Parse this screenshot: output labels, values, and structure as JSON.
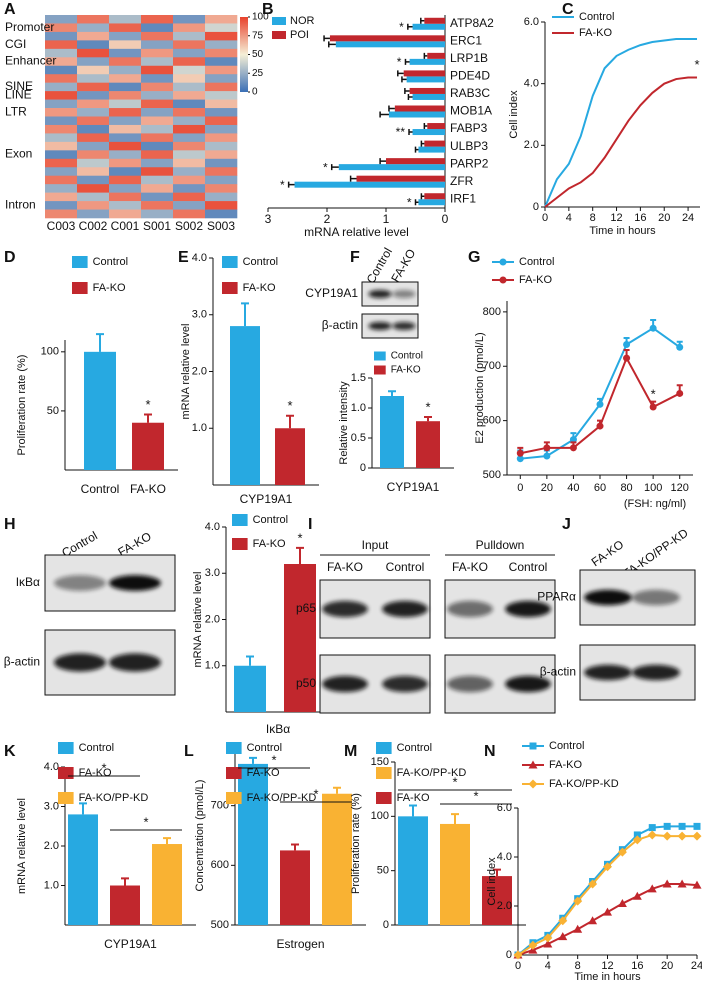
{
  "chart_data": [
    {
      "type": "heatmap",
      "letter": "A",
      "columns": [
        "C003",
        "C002",
        "C001",
        "S001",
        "S002",
        "S003"
      ],
      "rows": [
        null,
        "Promoter",
        null,
        "CGI",
        null,
        "Enhancer",
        null,
        null,
        "SINE",
        "LINE",
        null,
        "LTR",
        null,
        null,
        null,
        null,
        "Exon",
        null,
        null,
        null,
        null,
        null,
        "Intron",
        null
      ],
      "values": [
        [
          20,
          85,
          30,
          90,
          15,
          70
        ],
        [
          80,
          25,
          90,
          10,
          75,
          40
        ],
        [
          15,
          70,
          20,
          85,
          30,
          95
        ],
        [
          90,
          10,
          60,
          20,
          85,
          25
        ],
        [
          30,
          95,
          15,
          75,
          20,
          80
        ],
        [
          70,
          20,
          85,
          30,
          90,
          10
        ],
        [
          10,
          60,
          25,
          95,
          40,
          75
        ],
        [
          85,
          30,
          70,
          15,
          60,
          20
        ],
        [
          25,
          90,
          10,
          80,
          30,
          85
        ],
        [
          95,
          15,
          80,
          25,
          70,
          35
        ],
        [
          20,
          75,
          35,
          90,
          10,
          65
        ],
        [
          75,
          25,
          90,
          20,
          85,
          15
        ],
        [
          15,
          85,
          20,
          70,
          25,
          90
        ],
        [
          80,
          10,
          65,
          30,
          95,
          20
        ],
        [
          30,
          90,
          15,
          85,
          20,
          75
        ],
        [
          65,
          20,
          95,
          10,
          80,
          30
        ],
        [
          10,
          80,
          25,
          90,
          35,
          70
        ],
        [
          90,
          35,
          75,
          20,
          65,
          15
        ],
        [
          20,
          65,
          10,
          95,
          25,
          85
        ],
        [
          85,
          15,
          90,
          30,
          75,
          20
        ],
        [
          25,
          95,
          20,
          70,
          15,
          80
        ],
        [
          70,
          30,
          85,
          15,
          90,
          25
        ],
        [
          15,
          75,
          30,
          85,
          20,
          95
        ],
        [
          80,
          20,
          70,
          25,
          85,
          10
        ]
      ],
      "zlim": [
        0,
        100
      ],
      "zticks": [
        0,
        25,
        50,
        75,
        100
      ],
      "colormap": [
        "#3b6fb6",
        "#f5efd6",
        "#e8412c"
      ]
    },
    {
      "type": "hbar",
      "letter": "B",
      "categories": [
        "ATP8A2",
        "ERC1",
        "LRP1B",
        "PDE4D",
        "RAB3C",
        "MOB1A",
        "FABP3",
        "ULBP3",
        "PARP2",
        "ZFR",
        "IRF1"
      ],
      "series": [
        {
          "name": "NOR",
          "color": "#27a9e1",
          "values": [
            0.55,
            1.85,
            0.6,
            0.65,
            0.55,
            0.95,
            0.55,
            0.45,
            1.8,
            2.55,
            0.45
          ],
          "errors": [
            0.08,
            0.12,
            0.07,
            0.08,
            0.07,
            0.15,
            0.06,
            0.05,
            0.12,
            0.1,
            0.05
          ]
        },
        {
          "name": "POI",
          "color": "#c1272d",
          "values": [
            0.35,
            1.95,
            0.3,
            0.7,
            0.6,
            0.85,
            0.3,
            0.35,
            1.0,
            1.5,
            0.35
          ],
          "errors": [
            0.06,
            0.1,
            0.05,
            0.1,
            0.08,
            0.1,
            0.05,
            0.05,
            0.1,
            0.1,
            0.05
          ]
        }
      ],
      "markers": [
        "*",
        null,
        "*",
        null,
        null,
        null,
        "**",
        null,
        "*",
        "*",
        "*"
      ],
      "xlim": [
        3,
        0
      ],
      "xticks": [
        3,
        2,
        1,
        0
      ],
      "xlabel": "mRNA relative level"
    },
    {
      "type": "line",
      "letter": "C",
      "x": [
        0,
        2,
        4,
        6,
        8,
        10,
        12,
        14,
        16,
        18,
        20,
        22,
        24,
        25.5
      ],
      "series": [
        {
          "name": "Control",
          "color": "#27a9e1",
          "values": [
            0,
            0.9,
            1.4,
            2.3,
            3.6,
            4.5,
            4.9,
            5.1,
            5.25,
            5.35,
            5.4,
            5.45,
            5.45,
            5.45
          ]
        },
        {
          "name": "FA-KO",
          "color": "#c1272d",
          "values": [
            0,
            0.3,
            0.6,
            0.8,
            1.1,
            1.6,
            2.2,
            2.8,
            3.3,
            3.7,
            4.0,
            4.15,
            4.2,
            4.2
          ],
          "point_labels": [
            null,
            null,
            null,
            null,
            null,
            null,
            null,
            null,
            null,
            null,
            null,
            null,
            null,
            "*"
          ]
        }
      ],
      "xlim": [
        0,
        26
      ],
      "xticks": [
        0,
        4,
        8,
        12,
        16,
        20,
        24
      ],
      "ylim": [
        0,
        6
      ],
      "yticks": [
        0,
        {
          "value": 2,
          "label": "2.0"
        },
        {
          "value": 4,
          "label": "4.0"
        },
        {
          "value": 6,
          "label": "6.0"
        }
      ],
      "xlabel": "Time in hours",
      "ylabel": "Cell index"
    },
    {
      "type": "bar",
      "letter": "D",
      "categories": [
        "Control",
        "FA-KO"
      ],
      "category_labels": true,
      "colors": [
        "#27a9e1",
        "#c1272d"
      ],
      "values": [
        100,
        40
      ],
      "errors": [
        15,
        7
      ],
      "markers": [
        null,
        "*"
      ],
      "ylim": [
        0,
        110
      ],
      "yticks": [
        50,
        100
      ],
      "ylabel": "Proliferation rate (%)"
    },
    {
      "type": "bar",
      "letter": "E",
      "categories": [
        "Control",
        "FA-KO"
      ],
      "colors": [
        "#27a9e1",
        "#c1272d"
      ],
      "values": [
        2.8,
        1.0
      ],
      "errors": [
        0.4,
        0.22
      ],
      "markers": [
        null,
        "*"
      ],
      "ylim": [
        0,
        4
      ],
      "yticks": [
        {
          "value": 1,
          "label": "1.0"
        },
        {
          "value": 2,
          "label": "2.0"
        },
        {
          "value": 3,
          "label": "3.0"
        },
        {
          "value": 4,
          "label": "4.0"
        }
      ],
      "ylabel": "mRNA relative level",
      "xlabel": "CYP19A1"
    },
    {
      "type": "bar",
      "letter": "F",
      "categories": [
        "Control",
        "FA-KO"
      ],
      "colors": [
        "#27a9e1",
        "#c1272d"
      ],
      "values": [
        1.2,
        0.78
      ],
      "errors": [
        0.08,
        0.07
      ],
      "markers": [
        null,
        "*"
      ],
      "ylim": [
        0,
        1.5
      ],
      "yticks": [
        0,
        0.5,
        {
          "value": 1,
          "label": "1.0"
        },
        1.5
      ],
      "ylabel": "Relative intensity",
      "xlabel": "CYP19A1",
      "blot": {
        "columns": [
          "Control",
          "FA-KO"
        ],
        "rows": [
          "CYP19A1",
          "β-actin"
        ]
      }
    },
    {
      "type": "line",
      "letter": "G",
      "x": [
        0,
        20,
        40,
        60,
        80,
        100,
        120
      ],
      "marker": "circle",
      "series": [
        {
          "name": "Control",
          "color": "#27a9e1",
          "values": [
            530,
            535,
            565,
            630,
            740,
            770,
            735
          ],
          "errors": [
            15,
            10,
            12,
            10,
            12,
            15,
            10
          ]
        },
        {
          "name": "FA-KO",
          "color": "#c1272d",
          "values": [
            540,
            550,
            550,
            590,
            715,
            625,
            650
          ],
          "errors": [
            10,
            10,
            10,
            10,
            15,
            10,
            15
          ],
          "point_labels": [
            null,
            null,
            null,
            null,
            null,
            "*",
            null
          ]
        }
      ],
      "xlim": [
        -10,
        130
      ],
      "xticks": [
        0,
        20,
        40,
        60,
        80,
        100,
        120
      ],
      "ylim": [
        500,
        820
      ],
      "yticks": [
        500,
        600,
        700,
        800
      ],
      "ylabel": "E2 production (pmol/L)",
      "note": "(FSH: ng/ml)"
    },
    {
      "type": "bar",
      "letter": "H",
      "categories": [
        "Control",
        "FA-KO"
      ],
      "colors": [
        "#27a9e1",
        "#c1272d"
      ],
      "values": [
        1.0,
        3.2
      ],
      "errors": [
        0.2,
        0.35
      ],
      "markers": [
        null,
        "*"
      ],
      "ylim": [
        0,
        4
      ],
      "yticks": [
        {
          "value": 1,
          "label": "1.0"
        },
        {
          "value": 2,
          "label": "2.0"
        },
        {
          "value": 3,
          "label": "3.0"
        },
        {
          "value": 4,
          "label": "4.0"
        }
      ],
      "ylabel": "mRNA relative level",
      "xlabel": "IκBα",
      "blot": {
        "columns": [
          "Control",
          "FA-KO"
        ],
        "rows": [
          "IκBα",
          "β-actin"
        ]
      }
    },
    {
      "type": "blot",
      "letter": "I",
      "groups": [
        "Input",
        "Pulldown"
      ],
      "columns": [
        "FA-KO",
        "Control",
        "FA-KO",
        "Control"
      ],
      "rows": [
        "p65",
        "p50"
      ]
    },
    {
      "type": "blot",
      "letter": "J",
      "columns": [
        "FA-KO",
        "FA-KO/PP-KD"
      ],
      "rows": [
        "PPARα",
        "β-actin"
      ]
    },
    {
      "type": "bar",
      "letter": "K",
      "categories": [
        "Control",
        "FA-KO",
        "FA-KO/PP-KD"
      ],
      "colors": [
        "#27a9e1",
        "#c1272d",
        "#f9b233"
      ],
      "values": [
        2.8,
        1.0,
        2.05
      ],
      "errors": [
        0.28,
        0.18,
        0.15
      ],
      "ylim": [
        0,
        4
      ],
      "yticks": [
        {
          "value": 1,
          "label": "1.0"
        },
        {
          "value": 2,
          "label": "2.0"
        },
        {
          "value": 3,
          "label": "3.0"
        },
        {
          "value": 4,
          "label": "4.0"
        }
      ],
      "ylabel": "mRNA relative level",
      "xlabel": "CYP19A1",
      "comparisons": [
        {
          "bars": [
            0,
            1
          ],
          "label": "*"
        },
        {
          "bars": [
            1,
            2
          ],
          "label": "*"
        }
      ]
    },
    {
      "type": "bar",
      "letter": "L",
      "categories": [
        "Control",
        "FA-KO",
        "FA-KO/PP-KD"
      ],
      "colors": [
        "#27a9e1",
        "#c1272d",
        "#f9b233"
      ],
      "values": [
        770,
        625,
        720
      ],
      "errors": [
        10,
        10,
        10
      ],
      "ylim": [
        500,
        800
      ],
      "yticks": [
        500,
        600,
        700
      ],
      "ylabel": "Concentration (pmol/L)",
      "xlabel": "Estrogen",
      "comparisons": [
        {
          "bars": [
            0,
            1
          ],
          "label": "*"
        },
        {
          "bars": [
            1,
            2
          ],
          "label": "*"
        }
      ]
    },
    {
      "type": "bar",
      "letter": "M",
      "categories": [
        "Control",
        "FA-KO/PP-KD",
        "FA-KO"
      ],
      "colors": [
        "#27a9e1",
        "#f9b233",
        "#c1272d"
      ],
      "values": [
        100,
        93,
        45
      ],
      "errors": [
        10,
        9,
        6
      ],
      "ylim": [
        0,
        150
      ],
      "yticks": [
        0,
        50,
        100,
        150
      ],
      "ylabel": "Proliferation rate (%)",
      "comparisons": [
        {
          "bars": [
            0,
            2
          ],
          "label": "*"
        },
        {
          "bars": [
            1,
            2
          ],
          "label": "*"
        }
      ]
    },
    {
      "type": "line",
      "letter": "N",
      "x": [
        0,
        2,
        4,
        6,
        8,
        10,
        12,
        14,
        16,
        18,
        20,
        22,
        24
      ],
      "series": [
        {
          "name": "Control",
          "color": "#27a9e1",
          "marker": "square",
          "values": [
            0,
            0.5,
            0.8,
            1.5,
            2.3,
            3.0,
            3.7,
            4.3,
            4.9,
            5.2,
            5.25,
            5.25,
            5.25
          ]
        },
        {
          "name": "FA-KO",
          "color": "#c1272d",
          "marker": "triangle",
          "values": [
            0,
            0.2,
            0.45,
            0.75,
            1.05,
            1.4,
            1.75,
            2.1,
            2.4,
            2.7,
            2.9,
            2.9,
            2.85
          ]
        },
        {
          "name": "FA-KO/PP-KD",
          "color": "#f9b233",
          "marker": "diamond",
          "values": [
            0,
            0.4,
            0.7,
            1.4,
            2.2,
            2.9,
            3.6,
            4.2,
            4.7,
            4.9,
            4.85,
            4.85,
            4.85
          ]
        }
      ],
      "xlim": [
        0,
        24
      ],
      "xticks": [
        0,
        4,
        8,
        12,
        16,
        20,
        24
      ],
      "ylim": [
        0,
        6
      ],
      "yticks": [
        0,
        {
          "value": 2,
          "label": "2.0"
        },
        {
          "value": 4,
          "label": "4.0"
        },
        {
          "value": 6,
          "label": "6.0"
        }
      ],
      "xlabel": "Time in hours",
      "ylabel": "Cell index"
    }
  ]
}
